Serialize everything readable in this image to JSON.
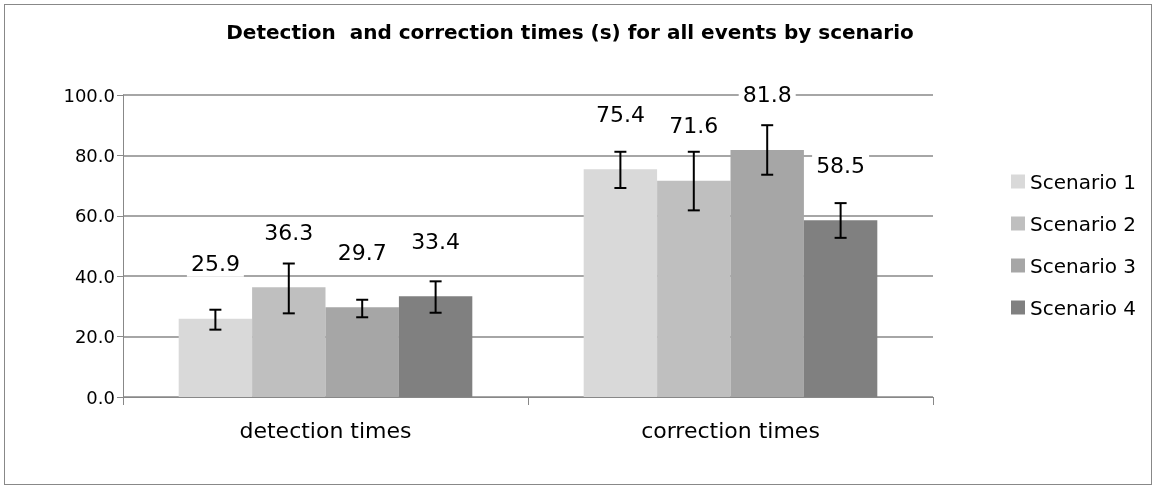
{
  "chart_data": {
    "type": "bar",
    "title": "Detection  and correction times (s) for all events by scenario",
    "categories": [
      "detection times",
      "correction times"
    ],
    "series": [
      {
        "name": "Scenario 1",
        "color": "#d9d9d9",
        "values": [
          25.9,
          75.4
        ],
        "errors": [
          [
            22.3,
            28.9
          ],
          [
            69.2,
            81.2
          ]
        ]
      },
      {
        "name": "Scenario 2",
        "color": "#bfbfbf",
        "values": [
          36.3,
          71.6
        ],
        "errors": [
          [
            27.7,
            44.2
          ],
          [
            61.8,
            81.2
          ]
        ]
      },
      {
        "name": "Scenario 3",
        "color": "#a6a6a6",
        "values": [
          29.7,
          81.8
        ],
        "errors": [
          [
            26.4,
            32.2
          ],
          [
            73.6,
            90.0
          ]
        ]
      },
      {
        "name": "Scenario 4",
        "color": "#808080",
        "values": [
          33.4,
          58.5
        ],
        "errors": [
          [
            27.9,
            38.3
          ],
          [
            52.7,
            64.2
          ]
        ]
      }
    ],
    "ylim": [
      0,
      100
    ],
    "yticks": [
      {
        "value": 0,
        "label": "0.0"
      },
      {
        "value": 20,
        "label": "20.0"
      },
      {
        "value": 40,
        "label": "40.0"
      },
      {
        "value": 60,
        "label": "60.0"
      },
      {
        "value": 80,
        "label": "80.0"
      },
      {
        "value": 100,
        "label": "100.0"
      }
    ],
    "grid": "y",
    "legend": "right",
    "data_labels": true
  }
}
